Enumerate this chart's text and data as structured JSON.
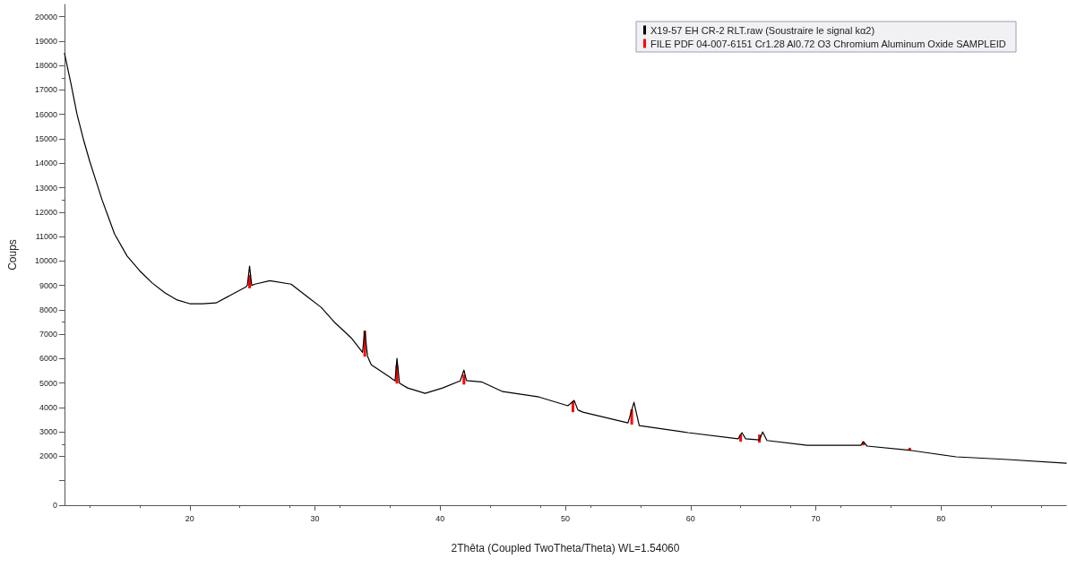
{
  "chart_data": {
    "type": "line",
    "xlabel": "2Thêta (Coupled TwoTheta/Theta) WL=1.54060",
    "ylabel": "Coups",
    "xlim": [
      10,
      90
    ],
    "ylim": [
      0,
      20500
    ],
    "xticks": [
      20,
      30,
      40,
      50,
      60,
      70,
      80
    ],
    "yticks": [
      0,
      {
        "value": 1000,
        "label": null
      },
      2000,
      3000,
      4000,
      5000,
      6000,
      7000,
      8000,
      9000,
      10000,
      11000,
      12000,
      13000,
      14000,
      15000,
      16000,
      17000,
      18000,
      19000,
      20000
    ],
    "grid": false,
    "legend": "top right",
    "marker": "none",
    "line_style": "solid",
    "series": [
      {
        "name": "X19-57 EH CR-2 RLT.raw (Soustraire le signal kα2)",
        "color": "#000000",
        "x": [
          10,
          10.5,
          11,
          11.5,
          12,
          12.5,
          13,
          13.5,
          14,
          15,
          16,
          17,
          18,
          19,
          20,
          21,
          22.1,
          23.6,
          24.5,
          24.6,
          24.78,
          24.95,
          25.2,
          26.4,
          28.1,
          29.3,
          30.5,
          31.6,
          32.9,
          33.8,
          33.98,
          34.2,
          34.5,
          35.9,
          36.4,
          36.55,
          36.75,
          37.4,
          38.8,
          40.2,
          41.6,
          41.9,
          42.1,
          43.3,
          45,
          47.9,
          50.2,
          50.7,
          51,
          51.4,
          55,
          55.48,
          55.9,
          59.8,
          63.8,
          64.1,
          64.4,
          65.5,
          65.76,
          66.1,
          69.3,
          73.6,
          73.8,
          74.1,
          77.5,
          81.2,
          85,
          90
        ],
        "values": [
          18500,
          17300,
          16000,
          15000,
          14100,
          13300,
          12500,
          11800,
          11100,
          10200,
          9600,
          9100,
          8700,
          8400,
          8250,
          8250,
          8280,
          8690,
          8940,
          9000,
          9790,
          9000,
          9050,
          9190,
          9050,
          8570,
          8100,
          7470,
          6850,
          6260,
          7140,
          6100,
          5750,
          5270,
          5090,
          6010,
          5000,
          4800,
          4580,
          4800,
          5090,
          5530,
          5100,
          5050,
          4650,
          4430,
          4070,
          4290,
          3900,
          3810,
          3370,
          4210,
          3260,
          2970,
          2720,
          2970,
          2720,
          2670,
          3000,
          2650,
          2450,
          2450,
          2600,
          2420,
          2250,
          1980,
          1880,
          1720
        ]
      },
      {
        "name": "FILE PDF 04-007-6151 Cr1.28 Al0.72 O3 Chromium Aluminum Oxide SAMPLEID",
        "color": "#ff0000",
        "type": "bar",
        "x": [
          24.78,
          33.98,
          36.55,
          41.9,
          50.6,
          55.3,
          64.0,
          65.5,
          73.8,
          77.5
        ],
        "base": [
          8880,
          6080,
          4980,
          4940,
          3810,
          3300,
          2600,
          2560,
          2450,
          2250
        ],
        "values": [
          550,
          1060,
          750,
          400,
          440,
          620,
          290,
          330,
          150,
          100
        ]
      }
    ]
  }
}
